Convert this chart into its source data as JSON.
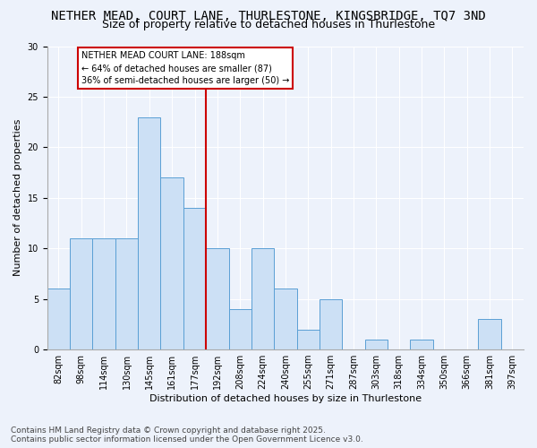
{
  "title1": "NETHER MEAD, COURT LANE, THURLESTONE, KINGSBRIDGE, TQ7 3ND",
  "title2": "Size of property relative to detached houses in Thurlestone",
  "xlabel": "Distribution of detached houses by size in Thurlestone",
  "ylabel": "Number of detached properties",
  "bins": [
    "82sqm",
    "98sqm",
    "114sqm",
    "130sqm",
    "145sqm",
    "161sqm",
    "177sqm",
    "192sqm",
    "208sqm",
    "224sqm",
    "240sqm",
    "255sqm",
    "271sqm",
    "287sqm",
    "303sqm",
    "318sqm",
    "334sqm",
    "350sqm",
    "366sqm",
    "381sqm",
    "397sqm"
  ],
  "values": [
    6,
    11,
    11,
    11,
    23,
    17,
    14,
    10,
    4,
    10,
    6,
    2,
    5,
    0,
    1,
    0,
    1,
    0,
    0,
    3,
    0
  ],
  "bar_color": "#cce0f5",
  "bar_edge_color": "#5a9fd4",
  "vline_color": "#cc0000",
  "annotation_text": "NETHER MEAD COURT LANE: 188sqm\n← 64% of detached houses are smaller (87)\n36% of semi-detached houses are larger (50) →",
  "annotation_box_color": "white",
  "annotation_box_edge": "#cc0000",
  "footer1": "Contains HM Land Registry data © Crown copyright and database right 2025.",
  "footer2": "Contains public sector information licensed under the Open Government Licence v3.0.",
  "ylim": [
    0,
    30
  ],
  "background_color": "#edf2fb",
  "plot_bg_color": "#edf2fb",
  "title1_fontsize": 10,
  "title2_fontsize": 9,
  "axis_label_fontsize": 8,
  "tick_fontsize": 7,
  "footer_fontsize": 6.5
}
